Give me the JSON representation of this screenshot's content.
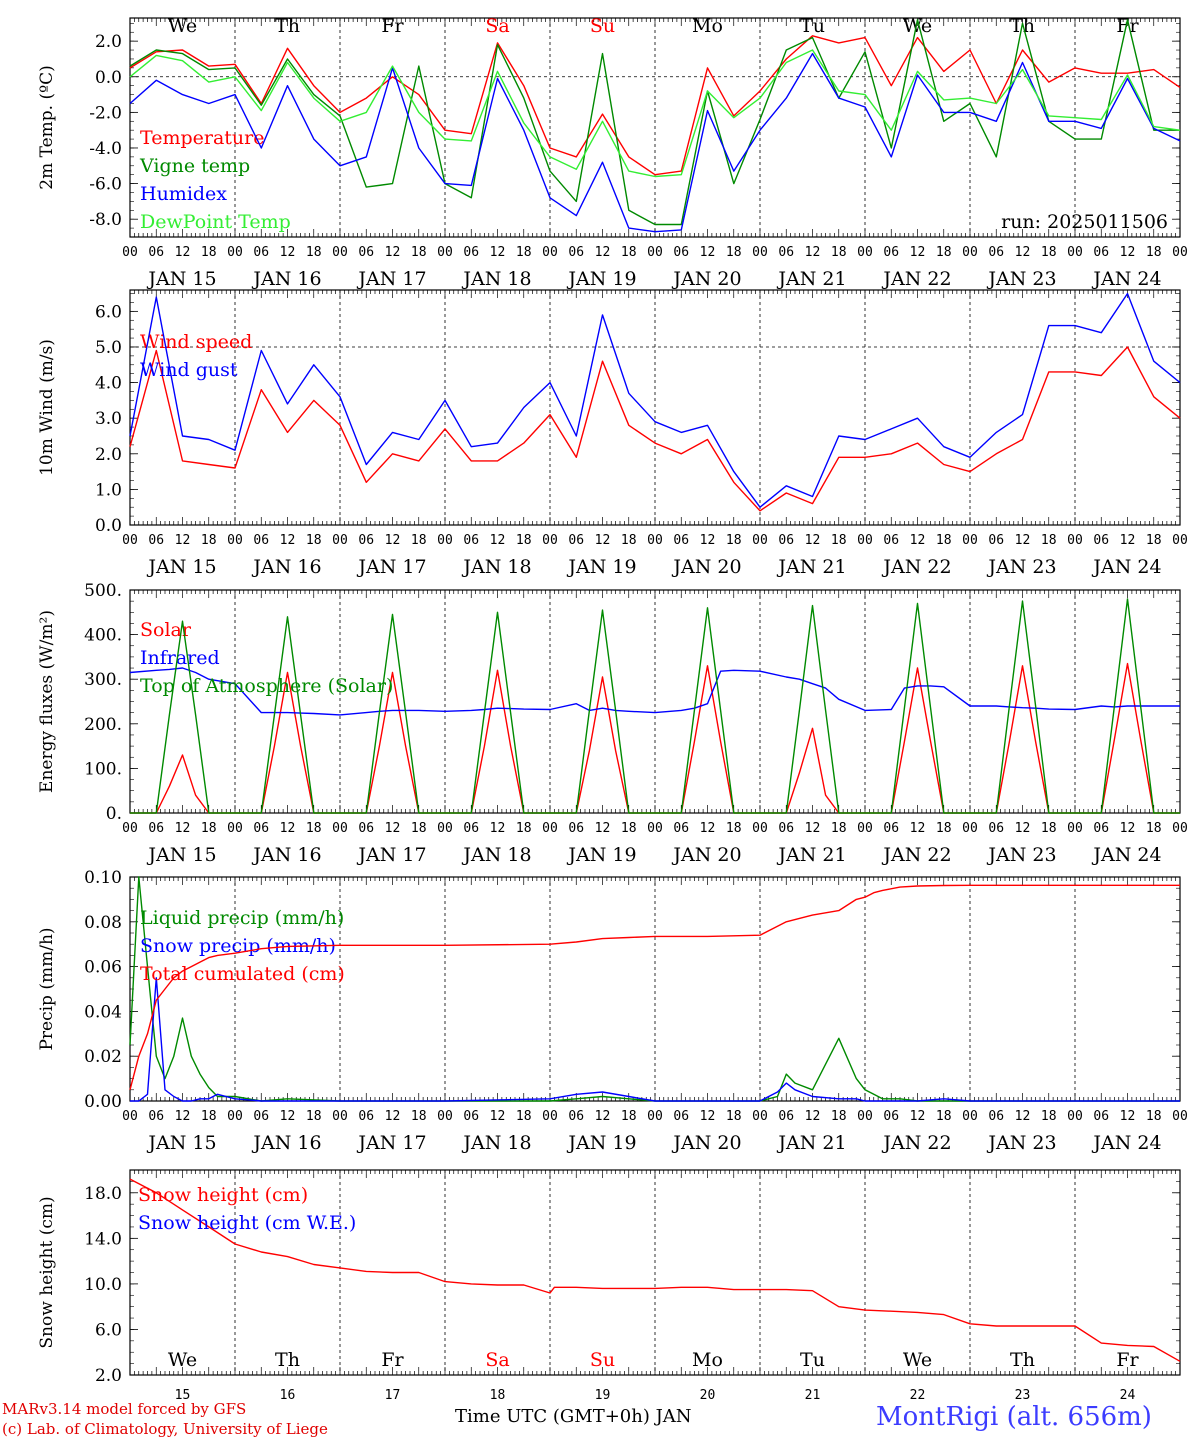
{
  "station": "MontRigi (alt. 656m)",
  "credit_line1": "MARv3.14 model forced by GFS",
  "credit_line2": "(c) Lab. of Climatology, University of Liege",
  "x_label": "Time UTC (GMT+0h) JAN",
  "run_label": "run: 2025011506",
  "colors": {
    "red": "#ff0000",
    "green": "#008a00",
    "blue": "#0000ff",
    "lightgreen": "#33ee33",
    "weekday": "#000000",
    "weekend": "#ff0000"
  },
  "x_axis": {
    "hours": [
      "00",
      "06",
      "12",
      "18"
    ],
    "final_hour": "00",
    "dates": [
      "JAN 15",
      "JAN 16",
      "JAN 17",
      "JAN 18",
      "JAN 19",
      "JAN 20",
      "JAN 21",
      "JAN 22",
      "JAN 23",
      "JAN 24"
    ],
    "days": [
      {
        "label": "We",
        "weekend": false
      },
      {
        "label": "Th",
        "weekend": false
      },
      {
        "label": "Fr",
        "weekend": false
      },
      {
        "label": "Sa",
        "weekend": true
      },
      {
        "label": "Su",
        "weekend": true
      },
      {
        "label": "Mo",
        "weekend": false
      },
      {
        "label": "Tu",
        "weekend": false
      },
      {
        "label": "We",
        "weekend": false
      },
      {
        "label": "Th",
        "weekend": false
      },
      {
        "label": "Fr",
        "weekend": false
      }
    ],
    "day_numbers": [
      "15",
      "16",
      "17",
      "18",
      "19",
      "20",
      "21",
      "22",
      "23",
      "24"
    ]
  },
  "chart_data": [
    {
      "type": "line",
      "ylabel": "2m Temp. (ºC)",
      "ylim": [
        -9.0,
        3.3
      ],
      "yticks": [
        -8,
        -6,
        -4,
        -2,
        0,
        2
      ],
      "ytick_labels": [
        "-8.0",
        "-6.0",
        "-4.0",
        "-2.0",
        "0.0",
        "2.0"
      ],
      "dashed_at": 0,
      "show_days": "top",
      "x_hours": [
        0,
        6,
        12,
        18,
        24,
        30,
        36,
        42,
        48,
        54,
        60,
        66,
        72,
        78,
        84,
        90,
        96,
        102,
        108,
        114,
        120,
        126,
        132,
        138,
        144,
        150,
        156,
        162,
        168,
        174,
        180,
        186,
        192,
        198,
        204,
        210,
        216,
        222,
        228,
        234,
        240
      ],
      "series": [
        {
          "name": "Temperature",
          "color": "red",
          "values": [
            0.5,
            1.4,
            1.5,
            0.6,
            0.7,
            -1.5,
            1.6,
            -0.5,
            -2.0,
            -1.2,
            0.0,
            -1.0,
            -3.0,
            -3.2,
            1.9,
            -0.5,
            -4.0,
            -4.5,
            -2.1,
            -4.5,
            -5.5,
            -5.3,
            0.5,
            -2.2,
            -0.8,
            1.0,
            2.3,
            1.9,
            2.2,
            -0.5,
            2.2,
            0.3,
            1.5,
            -1.5,
            1.5,
            -0.3,
            0.5,
            0.2,
            0.2,
            0.4,
            -0.6
          ]
        },
        {
          "name": "Vigne temp",
          "color": "green",
          "values": [
            0.6,
            1.5,
            1.3,
            0.4,
            0.5,
            -1.6,
            1.0,
            -1.0,
            -2.2,
            -6.2,
            -6.0,
            0.6,
            -6.0,
            -6.8,
            1.8,
            -1.2,
            -5.3,
            -7.0,
            1.3,
            -7.5,
            -8.3,
            -8.3,
            -0.8,
            -6.0,
            -2.4,
            1.5,
            2.2,
            -1.2,
            1.4,
            -4.0,
            3.2,
            -2.5,
            -1.5,
            -4.5,
            3.0,
            -2.5,
            -3.5,
            -3.5,
            3.2,
            -3.0,
            -3.0
          ]
        },
        {
          "name": "Humidex",
          "color": "blue",
          "values": [
            -1.5,
            -0.2,
            -1.0,
            -1.5,
            -1.0,
            -4.0,
            -0.5,
            -3.5,
            -5.0,
            -4.5,
            0.5,
            -4.0,
            -6.0,
            -6.1,
            -0.1,
            -3.0,
            -6.8,
            -7.8,
            -4.8,
            -8.5,
            -8.7,
            -8.6,
            -1.9,
            -5.3,
            -3.0,
            -1.2,
            1.3,
            -1.2,
            -1.7,
            -4.5,
            0.1,
            -2.0,
            -2.0,
            -2.5,
            0.8,
            -2.5,
            -2.5,
            -2.9,
            -0.1,
            -2.9,
            -3.6
          ]
        },
        {
          "name": "DewPoint Temp",
          "color": "lightgreen",
          "values": [
            0.0,
            1.2,
            0.9,
            -0.3,
            0.0,
            -1.9,
            0.8,
            -1.2,
            -2.5,
            -2.0,
            0.6,
            -2.0,
            -3.5,
            -3.6,
            0.3,
            -2.6,
            -4.5,
            -5.2,
            -2.5,
            -5.3,
            -5.6,
            -5.5,
            -0.8,
            -2.3,
            -1.2,
            0.8,
            1.5,
            -0.8,
            -1.0,
            -3.0,
            0.3,
            -1.3,
            -1.2,
            -1.5,
            0.4,
            -2.2,
            -2.3,
            -2.4,
            0.1,
            -2.8,
            -3.0
          ]
        }
      ]
    },
    {
      "type": "line",
      "ylabel": "10m Wind (m/s)",
      "ylim": [
        0.0,
        6.6
      ],
      "yticks": [
        0,
        1,
        2,
        3,
        4,
        5,
        6
      ],
      "ytick_labels": [
        "0.0",
        "1.0",
        "2.0",
        "3.0",
        "4.0",
        "5.0",
        "6.0"
      ],
      "dashed_at": 5,
      "x_hours": [
        0,
        6,
        12,
        18,
        24,
        30,
        36,
        42,
        48,
        54,
        60,
        66,
        72,
        78,
        84,
        90,
        96,
        102,
        108,
        114,
        120,
        126,
        132,
        138,
        144,
        150,
        156,
        162,
        168,
        174,
        180,
        186,
        192,
        198,
        204,
        210,
        216,
        222,
        228,
        234,
        240
      ],
      "series": [
        {
          "name": "Wind speed",
          "color": "red",
          "values": [
            2.2,
            4.9,
            1.8,
            1.7,
            1.6,
            3.8,
            2.6,
            3.5,
            2.8,
            1.2,
            2.0,
            1.8,
            2.7,
            1.8,
            1.8,
            2.3,
            3.1,
            1.9,
            4.6,
            2.8,
            2.3,
            2.0,
            2.4,
            1.2,
            0.4,
            0.9,
            0.6,
            1.9,
            1.9,
            2.0,
            2.3,
            1.7,
            1.5,
            2.0,
            2.4,
            4.3,
            4.3,
            4.2,
            5.0,
            3.6,
            3.0
          ]
        },
        {
          "name": "Wind gust",
          "color": "blue",
          "values": [
            2.5,
            6.4,
            2.5,
            2.4,
            2.1,
            4.9,
            3.4,
            4.5,
            3.6,
            1.7,
            2.6,
            2.4,
            3.5,
            2.2,
            2.3,
            3.3,
            4.0,
            2.5,
            5.9,
            3.7,
            2.9,
            2.6,
            2.8,
            1.5,
            0.5,
            1.1,
            0.8,
            2.5,
            2.4,
            2.7,
            3.0,
            2.2,
            1.9,
            2.6,
            3.1,
            5.6,
            5.6,
            5.4,
            6.5,
            4.6,
            4.0
          ]
        }
      ]
    },
    {
      "type": "line",
      "ylabel": "Energy fluxes (W/m²)",
      "ylim": [
        0,
        500
      ],
      "yticks": [
        0,
        100,
        200,
        300,
        400,
        500
      ],
      "ytick_labels": [
        "0.",
        "100.",
        "200.",
        "300.",
        "400.",
        "500."
      ],
      "x_hours": [
        0,
        6,
        9,
        12,
        15,
        18,
        24,
        30,
        33,
        36,
        39,
        42,
        48,
        54,
        57,
        60,
        63,
        66,
        72,
        78,
        81,
        84,
        87,
        90,
        96,
        102,
        105,
        108,
        111,
        114,
        120,
        126,
        129,
        132,
        135,
        138,
        144,
        150,
        153,
        156,
        159,
        162,
        168,
        174,
        177,
        180,
        183,
        186,
        192,
        198,
        201,
        204,
        207,
        210,
        216,
        222,
        225,
        228,
        231,
        234,
        240
      ],
      "series": [
        {
          "name": "Solar",
          "color": "red",
          "values": [
            0,
            0,
            60,
            130,
            40,
            0,
            0,
            0,
            150,
            315,
            150,
            0,
            0,
            0,
            150,
            315,
            150,
            0,
            0,
            0,
            150,
            320,
            150,
            0,
            0,
            0,
            140,
            305,
            140,
            0,
            0,
            0,
            160,
            330,
            160,
            0,
            0,
            0,
            90,
            190,
            40,
            0,
            0,
            0,
            160,
            325,
            160,
            0,
            0,
            0,
            160,
            330,
            160,
            0,
            0,
            0,
            165,
            335,
            165,
            0,
            0
          ]
        },
        {
          "name": "Infrared",
          "color": "blue",
          "values": [
            315,
            320,
            322,
            325,
            315,
            300,
            290,
            225,
            225,
            225,
            224,
            223,
            220,
            225,
            228,
            230,
            230,
            230,
            228,
            230,
            232,
            235,
            234,
            233,
            232,
            245,
            230,
            235,
            230,
            228,
            225,
            230,
            235,
            245,
            318,
            320,
            318,
            305,
            300,
            290,
            280,
            255,
            230,
            232,
            280,
            285,
            285,
            283,
            240,
            240,
            238,
            236,
            235,
            233,
            232,
            240,
            238,
            240,
            240,
            240,
            240
          ]
        },
        {
          "name": "Top of Atmosphere (Solar)",
          "color": "green",
          "values": [
            0,
            0,
            220,
            430,
            220,
            0,
            0,
            0,
            220,
            440,
            220,
            0,
            0,
            0,
            225,
            445,
            225,
            0,
            0,
            0,
            225,
            450,
            225,
            0,
            0,
            0,
            230,
            455,
            230,
            0,
            0,
            0,
            230,
            460,
            230,
            0,
            0,
            0,
            230,
            465,
            230,
            0,
            0,
            0,
            235,
            470,
            235,
            0,
            0,
            0,
            240,
            475,
            240,
            0,
            0,
            0,
            240,
            480,
            240,
            0,
            0
          ]
        }
      ]
    },
    {
      "type": "line",
      "ylabel": "Precip (mm/h)",
      "ylim": [
        0.0,
        0.1
      ],
      "yticks": [
        0,
        0.02,
        0.04,
        0.06,
        0.08,
        0.1
      ],
      "ytick_labels": [
        "0.00",
        "0.02",
        "0.04",
        "0.06",
        "0.08",
        "0.10"
      ],
      "x_hours": [
        0,
        2,
        4,
        6,
        8,
        10,
        12,
        14,
        16,
        18,
        20,
        24,
        30,
        36,
        48,
        72,
        96,
        102,
        108,
        114,
        120,
        132,
        144,
        148,
        150,
        152,
        156,
        162,
        166,
        168,
        170,
        172,
        176,
        180,
        186,
        192,
        216,
        240
      ],
      "series": [
        {
          "name": "Liquid precip (mm/h)",
          "color": "green",
          "values": [
            0.025,
            0.1,
            0.06,
            0.02,
            0.01,
            0.02,
            0.037,
            0.02,
            0.012,
            0.006,
            0.002,
            0.002,
            0.0,
            0.001,
            0.0,
            0.0,
            0.0,
            0.001,
            0.002,
            0.001,
            0.0,
            0.0,
            0.0,
            0.002,
            0.012,
            0.008,
            0.005,
            0.028,
            0.01,
            0.005,
            0.003,
            0.001,
            0.001,
            0.0,
            0.0,
            0.0,
            0.0,
            0.0
          ]
        },
        {
          "name": "Snow precip (mm/h)",
          "color": "blue",
          "values": [
            0.0,
            0.0,
            0.003,
            0.055,
            0.005,
            0.002,
            0.0,
            0.0,
            0.001,
            0.001,
            0.003,
            0.001,
            0.0,
            0.0,
            0.0,
            0.0,
            0.001,
            0.003,
            0.004,
            0.002,
            0.0,
            0.0,
            0.0,
            0.004,
            0.008,
            0.005,
            0.002,
            0.001,
            0.001,
            0.0,
            0.0,
            0.0,
            0.0,
            0.0,
            0.001,
            0.0,
            0.0,
            0.0
          ]
        },
        {
          "name": "Total cumulated (cm)",
          "color": "red",
          "values": [
            0.005,
            0.02,
            0.03,
            0.045,
            0.05,
            0.055,
            0.058,
            0.06,
            0.062,
            0.064,
            0.065,
            0.066,
            0.068,
            0.069,
            0.0695,
            0.0695,
            0.07,
            0.071,
            0.0725,
            0.073,
            0.0735,
            0.0735,
            0.074,
            0.078,
            0.08,
            0.081,
            0.083,
            0.085,
            0.09,
            0.091,
            0.093,
            0.094,
            0.0955,
            0.096,
            0.0962,
            0.0963,
            0.0963,
            0.0963
          ]
        }
      ]
    },
    {
      "type": "line",
      "ylabel": "Snow height (cm)",
      "ylim": [
        2.0,
        20.0
      ],
      "yticks": [
        2,
        6,
        10,
        14,
        18
      ],
      "ytick_labels": [
        "2.0",
        "6.0",
        "10.0",
        "14.0",
        "18.0"
      ],
      "show_days": "inside",
      "show_day_numbers": true,
      "x_hours": [
        0,
        6,
        12,
        18,
        24,
        30,
        36,
        42,
        48,
        54,
        60,
        66,
        72,
        78,
        84,
        90,
        96,
        97,
        102,
        108,
        114,
        120,
        126,
        132,
        138,
        144,
        150,
        156,
        162,
        168,
        174,
        180,
        186,
        192,
        198,
        204,
        210,
        216,
        222,
        228,
        234,
        240
      ],
      "series": [
        {
          "name": "Snow height (cm)",
          "color": "red",
          "values": [
            19.2,
            18.0,
            16.5,
            15.0,
            13.5,
            12.8,
            12.4,
            11.7,
            11.4,
            11.1,
            11.0,
            11.0,
            10.2,
            10.0,
            9.9,
            9.9,
            9.2,
            9.7,
            9.7,
            9.6,
            9.6,
            9.6,
            9.7,
            9.7,
            9.5,
            9.5,
            9.5,
            9.4,
            8.0,
            7.7,
            7.6,
            7.5,
            7.3,
            6.5,
            6.3,
            6.3,
            6.3,
            6.3,
            4.8,
            4.6,
            4.5,
            3.2
          ]
        },
        {
          "name": "Snow height (cm W.E.)",
          "color": "blue",
          "values": []
        }
      ]
    }
  ]
}
